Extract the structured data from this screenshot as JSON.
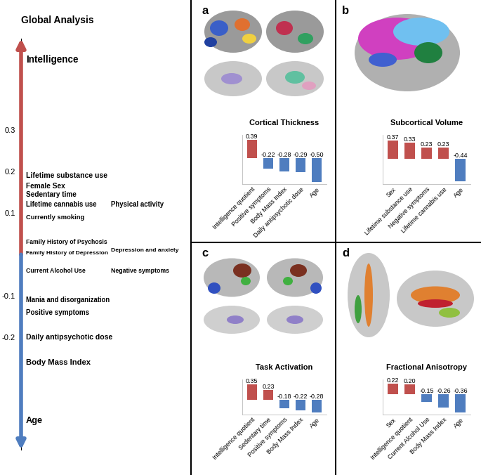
{
  "chart_data": [
    {
      "type": "scale",
      "title": "Global Analysis",
      "items": [
        {
          "name": "Intelligence",
          "value": 0.47
        },
        {
          "name": "Lifetime substance use",
          "value": 0.19
        },
        {
          "name": "Female Sex",
          "value": 0.165
        },
        {
          "name": "Sedentary time",
          "value": 0.145
        },
        {
          "name": "Lifetime cannabis use",
          "value": 0.12
        },
        {
          "name": "Physical activity",
          "value": 0.12
        },
        {
          "name": "Currently smoking",
          "value": 0.09
        },
        {
          "name": "Family History of Psychosis",
          "value": 0.03
        },
        {
          "name": "Family History of Depression",
          "value": 0.003
        },
        {
          "name": "Depression and anxiety",
          "value": 0.01
        },
        {
          "name": "Current Alcohol Use",
          "value": -0.04
        },
        {
          "name": "Negative symptoms",
          "value": -0.04
        },
        {
          "name": "Mania and disorganization",
          "value": -0.11
        },
        {
          "name": "Positive symptoms",
          "value": -0.14
        },
        {
          "name": "Daily antipsychotic dose",
          "value": -0.2
        },
        {
          "name": "Body Mass Index",
          "value": -0.26
        },
        {
          "name": "Age",
          "value": -0.4
        }
      ],
      "colors": [
        "#c0504d",
        "#4f7dbf"
      ],
      "ylim": [
        -0.47,
        0.52
      ],
      "yticks": [
        0.3,
        0.2,
        0.1,
        -0.1,
        -0.2
      ],
      "tick_labels": "y"
    },
    {
      "type": "bar",
      "panel": "a",
      "title": "Cortical Thickness",
      "categories": [
        "Intelligence quotient",
        "Positive symptoms",
        "Body Mass Index",
        "Daily antipsychotic dose",
        "Age"
      ],
      "values": [
        0.39,
        -0.22,
        -0.28,
        -0.29,
        -0.5
      ],
      "value_labels": [
        "0.39",
        "-0.22",
        "-0.28",
        "-0.29",
        "-0.50"
      ],
      "colors": [
        "#c0504d",
        "#4f7dbf",
        "#4f7dbf",
        "#4f7dbf",
        "#4f7dbf"
      ],
      "ylim": [
        -0.55,
        0.5
      ],
      "data_labels": true,
      "tick_labels": "x"
    },
    {
      "type": "bar",
      "panel": "b",
      "title": "Subcortical Volume",
      "categories": [
        "Sex",
        "Lifetime substance use",
        "Negative symptoms",
        "Lifetime cannabis use",
        "Age"
      ],
      "values": [
        0.37,
        0.33,
        0.23,
        0.23,
        -0.44
      ],
      "value_labels": [
        "0.37",
        "0.33",
        "0.23",
        "0.23",
        "-0.44"
      ],
      "colors": [
        "#c0504d",
        "#c0504d",
        "#c0504d",
        "#c0504d",
        "#4f7dbf"
      ],
      "ylim": [
        -0.5,
        0.48
      ],
      "data_labels": true,
      "tick_labels": "x"
    },
    {
      "type": "bar",
      "panel": "c",
      "title": "Task Activation",
      "categories": [
        "Intelligence quotient",
        "Sedentary time",
        "Positive symptoms",
        "Body Mass Index",
        "Age"
      ],
      "values": [
        0.35,
        0.23,
        -0.18,
        -0.22,
        -0.28
      ],
      "value_labels": [
        "0.35",
        "0.23",
        "-0.18",
        "-0.22",
        "-0.28"
      ],
      "colors": [
        "#c0504d",
        "#c0504d",
        "#4f7dbf",
        "#4f7dbf",
        "#4f7dbf"
      ],
      "ylim": [
        -0.32,
        0.46
      ],
      "data_labels": true,
      "tick_labels": "x"
    },
    {
      "type": "bar",
      "panel": "d",
      "title": "Fractional Anisotropy",
      "categories": [
        "Sex",
        "Intelligence quotient",
        "Current Alcohol Use",
        "Body Mass Index",
        "Age"
      ],
      "values": [
        0.22,
        0.2,
        -0.15,
        -0.26,
        -0.36
      ],
      "value_labels": [
        "0.22",
        "0.20",
        "-0.15",
        "-0.26",
        "-0.36"
      ],
      "colors": [
        "#c0504d",
        "#c0504d",
        "#4f7dbf",
        "#4f7dbf",
        "#4f7dbf"
      ],
      "ylim": [
        -0.4,
        0.3
      ],
      "data_labels": true,
      "tick_labels": "x"
    }
  ]
}
